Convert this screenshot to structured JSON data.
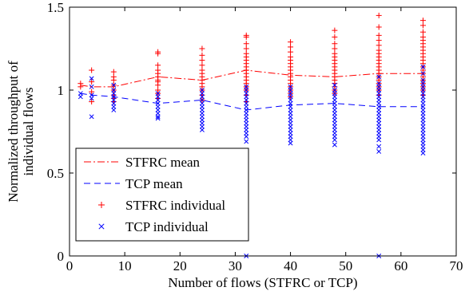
{
  "chart_data": {
    "type": "scatter",
    "xlabel": "Number of flows (STFRC or TCP)",
    "ylabel_lines": [
      "Normalized throughput of",
      "individual flows"
    ],
    "xlim": [
      0,
      70
    ],
    "ylim": [
      0,
      1.5
    ],
    "xticks": [
      0,
      10,
      20,
      30,
      40,
      50,
      60,
      70
    ],
    "yticks": [
      0,
      0.5,
      1,
      1.5
    ],
    "xtick_labels": [
      "0",
      "10",
      "20",
      "30",
      "40",
      "50",
      "60",
      "70"
    ],
    "ytick_labels": [
      "0",
      "0.5",
      "1",
      "1.5"
    ],
    "grid": false,
    "legend_position": "lower-left",
    "colors": {
      "stfrc": "#ff0000",
      "tcp": "#0000ff"
    },
    "series": [
      {
        "name": "STFRC mean",
        "kind": "line",
        "style": "dashdot",
        "color": "#ff0000",
        "x": [
          2,
          4,
          8,
          16,
          24,
          32,
          40,
          48,
          56,
          64
        ],
        "y": [
          1.03,
          1.02,
          1.02,
          1.08,
          1.06,
          1.12,
          1.09,
          1.08,
          1.1,
          1.1
        ]
      },
      {
        "name": "TCP mean",
        "kind": "line",
        "style": "dashed",
        "color": "#0000ff",
        "x": [
          2,
          4,
          8,
          16,
          24,
          32,
          40,
          48,
          56,
          64
        ],
        "y": [
          0.98,
          0.97,
          0.96,
          0.92,
          0.94,
          0.88,
          0.91,
          0.92,
          0.9,
          0.9
        ]
      },
      {
        "name": "STFRC individual",
        "kind": "marker",
        "marker": "plus",
        "color": "#ff0000",
        "points": [
          [
            2,
            1.02
          ],
          [
            2,
            1.04
          ],
          [
            4,
            1.12
          ],
          [
            4,
            1.05
          ],
          [
            4,
            0.99
          ],
          [
            4,
            0.93
          ],
          [
            8,
            1.11
          ],
          [
            8,
            1.08
          ],
          [
            8,
            1.06
          ],
          [
            8,
            1.03
          ],
          [
            8,
            1.0
          ],
          [
            8,
            0.97
          ],
          [
            8,
            0.95
          ],
          [
            8,
            0.93
          ],
          [
            16,
            1.23
          ],
          [
            16,
            1.22
          ],
          [
            16,
            1.15
          ],
          [
            16,
            1.12
          ],
          [
            16,
            1.1
          ],
          [
            16,
            1.08
          ],
          [
            16,
            1.06
          ],
          [
            16,
            1.05
          ],
          [
            16,
            1.03
          ],
          [
            16,
            1.0
          ],
          [
            16,
            0.98
          ],
          [
            16,
            0.95
          ],
          [
            24,
            1.25
          ],
          [
            24,
            1.21
          ],
          [
            24,
            1.18
          ],
          [
            24,
            1.15
          ],
          [
            24,
            1.12
          ],
          [
            24,
            1.1
          ],
          [
            24,
            1.08
          ],
          [
            24,
            1.06
          ],
          [
            24,
            1.04
          ],
          [
            24,
            1.02
          ],
          [
            24,
            1.0
          ],
          [
            24,
            0.97
          ],
          [
            24,
            0.94
          ],
          [
            32,
            1.33
          ],
          [
            32,
            1.32
          ],
          [
            32,
            1.28
          ],
          [
            32,
            1.25
          ],
          [
            32,
            1.22
          ],
          [
            32,
            1.2
          ],
          [
            32,
            1.18
          ],
          [
            32,
            1.16
          ],
          [
            32,
            1.14
          ],
          [
            32,
            1.12
          ],
          [
            32,
            1.1
          ],
          [
            32,
            1.08
          ],
          [
            32,
            1.06
          ],
          [
            32,
            1.04
          ],
          [
            32,
            1.02
          ],
          [
            32,
            1.0
          ],
          [
            32,
            0.97
          ],
          [
            32,
            0.93
          ],
          [
            40,
            1.29
          ],
          [
            40,
            1.26
          ],
          [
            40,
            1.23
          ],
          [
            40,
            1.2
          ],
          [
            40,
            1.18
          ],
          [
            40,
            1.16
          ],
          [
            40,
            1.14
          ],
          [
            40,
            1.12
          ],
          [
            40,
            1.1
          ],
          [
            40,
            1.08
          ],
          [
            40,
            1.06
          ],
          [
            40,
            1.04
          ],
          [
            40,
            1.02
          ],
          [
            40,
            1.0
          ],
          [
            40,
            0.98
          ],
          [
            40,
            0.96
          ],
          [
            48,
            1.36
          ],
          [
            48,
            1.32
          ],
          [
            48,
            1.28
          ],
          [
            48,
            1.25
          ],
          [
            48,
            1.22
          ],
          [
            48,
            1.2
          ],
          [
            48,
            1.18
          ],
          [
            48,
            1.16
          ],
          [
            48,
            1.14
          ],
          [
            48,
            1.12
          ],
          [
            48,
            1.1
          ],
          [
            48,
            1.08
          ],
          [
            48,
            1.06
          ],
          [
            48,
            1.04
          ],
          [
            48,
            1.02
          ],
          [
            48,
            1.0
          ],
          [
            48,
            0.98
          ],
          [
            56,
            1.45
          ],
          [
            56,
            1.38
          ],
          [
            56,
            1.33
          ],
          [
            56,
            1.3
          ],
          [
            56,
            1.27
          ],
          [
            56,
            1.24
          ],
          [
            56,
            1.22
          ],
          [
            56,
            1.2
          ],
          [
            56,
            1.18
          ],
          [
            56,
            1.16
          ],
          [
            56,
            1.14
          ],
          [
            56,
            1.12
          ],
          [
            56,
            1.1
          ],
          [
            56,
            1.08
          ],
          [
            56,
            1.06
          ],
          [
            56,
            1.04
          ],
          [
            56,
            1.02
          ],
          [
            56,
            1.0
          ],
          [
            56,
            0.97
          ],
          [
            64,
            1.42
          ],
          [
            64,
            1.39
          ],
          [
            64,
            1.35
          ],
          [
            64,
            1.32
          ],
          [
            64,
            1.3
          ],
          [
            64,
            1.28
          ],
          [
            64,
            1.26
          ],
          [
            64,
            1.24
          ],
          [
            64,
            1.22
          ],
          [
            64,
            1.2
          ],
          [
            64,
            1.18
          ],
          [
            64,
            1.16
          ],
          [
            64,
            1.14
          ],
          [
            64,
            1.12
          ],
          [
            64,
            1.1
          ],
          [
            64,
            1.08
          ],
          [
            64,
            1.06
          ],
          [
            64,
            1.04
          ],
          [
            64,
            1.02
          ],
          [
            64,
            1.0
          ],
          [
            64,
            0.97
          ]
        ]
      },
      {
        "name": "TCP individual",
        "kind": "marker",
        "marker": "x",
        "color": "#0000ff",
        "points": [
          [
            2,
            0.98
          ],
          [
            2,
            0.96
          ],
          [
            4,
            1.07
          ],
          [
            4,
            1.02
          ],
          [
            4,
            0.97
          ],
          [
            4,
            0.95
          ],
          [
            4,
            0.84
          ],
          [
            8,
            1.03
          ],
          [
            8,
            1.0
          ],
          [
            8,
            0.98
          ],
          [
            8,
            0.96
          ],
          [
            8,
            0.94
          ],
          [
            8,
            0.92
          ],
          [
            8,
            0.9
          ],
          [
            8,
            0.88
          ],
          [
            16,
            0.98
          ],
          [
            16,
            0.96
          ],
          [
            16,
            0.94
          ],
          [
            16,
            0.92
          ],
          [
            16,
            0.9
          ],
          [
            16,
            0.88
          ],
          [
            16,
            0.86
          ],
          [
            16,
            0.84
          ],
          [
            16,
            0.83
          ],
          [
            24,
            1.0
          ],
          [
            24,
            0.98
          ],
          [
            24,
            0.96
          ],
          [
            24,
            0.94
          ],
          [
            24,
            0.92
          ],
          [
            24,
            0.9
          ],
          [
            24,
            0.88
          ],
          [
            24,
            0.86
          ],
          [
            24,
            0.84
          ],
          [
            24,
            0.82
          ],
          [
            24,
            0.8
          ],
          [
            24,
            0.78
          ],
          [
            24,
            0.76
          ],
          [
            32,
            1.02
          ],
          [
            32,
            1.0
          ],
          [
            32,
            0.98
          ],
          [
            32,
            0.96
          ],
          [
            32,
            0.94
          ],
          [
            32,
            0.92
          ],
          [
            32,
            0.9
          ],
          [
            32,
            0.88
          ],
          [
            32,
            0.86
          ],
          [
            32,
            0.84
          ],
          [
            32,
            0.82
          ],
          [
            32,
            0.8
          ],
          [
            32,
            0.78
          ],
          [
            32,
            0.76
          ],
          [
            32,
            0.74
          ],
          [
            32,
            0.72
          ],
          [
            32,
            0.69
          ],
          [
            32,
            0.0
          ],
          [
            40,
            1.02
          ],
          [
            40,
            1.0
          ],
          [
            40,
            0.98
          ],
          [
            40,
            0.96
          ],
          [
            40,
            0.94
          ],
          [
            40,
            0.92
          ],
          [
            40,
            0.9
          ],
          [
            40,
            0.88
          ],
          [
            40,
            0.86
          ],
          [
            40,
            0.84
          ],
          [
            40,
            0.82
          ],
          [
            40,
            0.8
          ],
          [
            40,
            0.78
          ],
          [
            40,
            0.76
          ],
          [
            40,
            0.74
          ],
          [
            40,
            0.72
          ],
          [
            40,
            0.7
          ],
          [
            40,
            0.68
          ],
          [
            48,
            1.03
          ],
          [
            48,
            1.0
          ],
          [
            48,
            0.98
          ],
          [
            48,
            0.96
          ],
          [
            48,
            0.94
          ],
          [
            48,
            0.92
          ],
          [
            48,
            0.9
          ],
          [
            48,
            0.88
          ],
          [
            48,
            0.86
          ],
          [
            48,
            0.84
          ],
          [
            48,
            0.82
          ],
          [
            48,
            0.8
          ],
          [
            48,
            0.78
          ],
          [
            48,
            0.76
          ],
          [
            48,
            0.74
          ],
          [
            48,
            0.72
          ],
          [
            48,
            0.7
          ],
          [
            48,
            0.67
          ],
          [
            56,
            1.08
          ],
          [
            56,
            1.04
          ],
          [
            56,
            1.02
          ],
          [
            56,
            1.0
          ],
          [
            56,
            0.98
          ],
          [
            56,
            0.96
          ],
          [
            56,
            0.94
          ],
          [
            56,
            0.92
          ],
          [
            56,
            0.9
          ],
          [
            56,
            0.88
          ],
          [
            56,
            0.86
          ],
          [
            56,
            0.84
          ],
          [
            56,
            0.82
          ],
          [
            56,
            0.8
          ],
          [
            56,
            0.78
          ],
          [
            56,
            0.76
          ],
          [
            56,
            0.74
          ],
          [
            56,
            0.72
          ],
          [
            56,
            0.7
          ],
          [
            56,
            0.66
          ],
          [
            56,
            0.63
          ],
          [
            56,
            0.0
          ],
          [
            64,
            1.14
          ],
          [
            64,
            1.1
          ],
          [
            64,
            1.06
          ],
          [
            64,
            1.04
          ],
          [
            64,
            1.02
          ],
          [
            64,
            1.0
          ],
          [
            64,
            0.98
          ],
          [
            64,
            0.96
          ],
          [
            64,
            0.94
          ],
          [
            64,
            0.92
          ],
          [
            64,
            0.9
          ],
          [
            64,
            0.88
          ],
          [
            64,
            0.86
          ],
          [
            64,
            0.84
          ],
          [
            64,
            0.82
          ],
          [
            64,
            0.8
          ],
          [
            64,
            0.78
          ],
          [
            64,
            0.76
          ],
          [
            64,
            0.74
          ],
          [
            64,
            0.72
          ],
          [
            64,
            0.7
          ],
          [
            64,
            0.68
          ],
          [
            64,
            0.66
          ],
          [
            64,
            0.64
          ],
          [
            64,
            0.62
          ]
        ]
      }
    ]
  }
}
